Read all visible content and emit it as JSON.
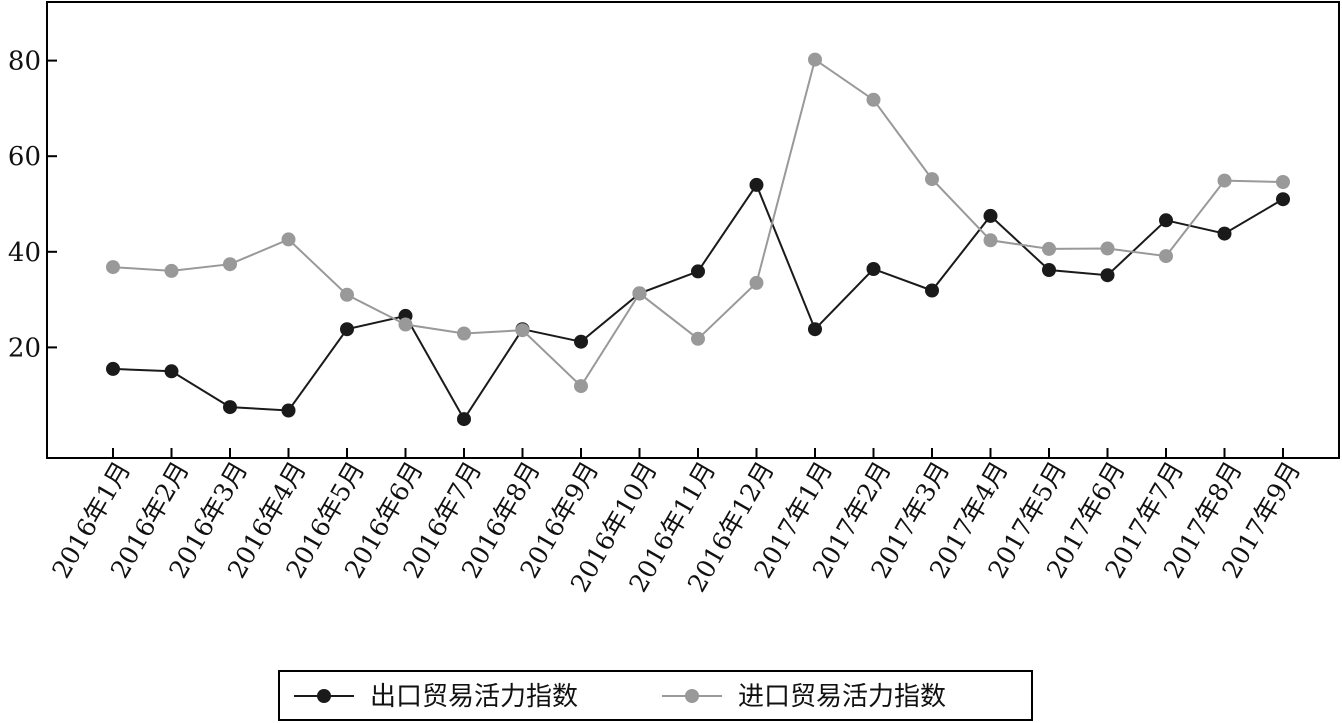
{
  "chart_data": {
    "type": "line",
    "categories": [
      "2016年1月",
      "2016年2月",
      "2016年3月",
      "2016年4月",
      "2016年5月",
      "2016年6月",
      "2016年7月",
      "2016年8月",
      "2016年9月",
      "2016年10月",
      "2016年11月",
      "2016年12月",
      "2017年1月",
      "2017年2月",
      "2017年3月",
      "2017年4月",
      "2017年5月",
      "2017年6月",
      "2017年7月",
      "2017年8月",
      "2017年9月"
    ],
    "series": [
      {
        "name": "出口贸易活力指数",
        "color": "#1a1a1a",
        "values": [
          15.5,
          15.0,
          7.5,
          6.8,
          23.8,
          26.6,
          5.0,
          23.8,
          21.2,
          31.3,
          35.9,
          54.0,
          23.8,
          36.4,
          31.9,
          47.5,
          36.2,
          35.1,
          46.6,
          43.8,
          51.0
        ]
      },
      {
        "name": "进口贸易活力指数",
        "color": "#999999",
        "values": [
          36.8,
          36.0,
          37.4,
          42.6,
          31.0,
          24.8,
          22.9,
          23.6,
          11.9,
          31.3,
          21.8,
          33.5,
          80.2,
          71.8,
          55.2,
          42.4,
          40.6,
          40.7,
          39.1,
          54.9,
          54.6
        ]
      }
    ],
    "yticks": [
      "20",
      "40",
      "60",
      "80"
    ],
    "ylim": [
      0,
      95
    ],
    "title": "",
    "xlabel": "",
    "ylabel": "",
    "legend_position": "bottom-center",
    "grid": false
  }
}
